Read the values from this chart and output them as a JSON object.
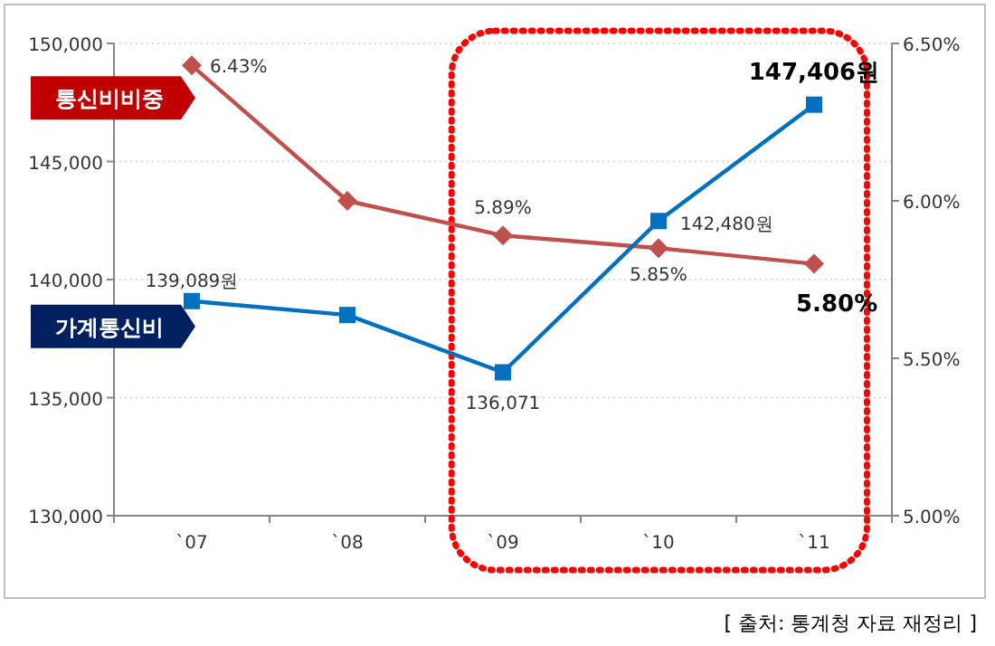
{
  "chart_data": {
    "type": "line",
    "categories": [
      "`07",
      "`08",
      "`09",
      "`10",
      "`11"
    ],
    "series": [
      {
        "name": "통신비비중",
        "color": "#c0504d",
        "axis": "y2",
        "marker": "diamond",
        "values": [
          6.43,
          6.0,
          5.89,
          5.85,
          5.8
        ],
        "value_labels": [
          "6.43%",
          null,
          "5.89%",
          "5.85%",
          "5.80%"
        ]
      },
      {
        "name": "가계통신비",
        "color": "#0070c0",
        "axis": "y",
        "marker": "square",
        "values": [
          139089,
          138500,
          136071,
          142480,
          147406
        ],
        "value_labels": [
          "139,089원",
          null,
          "136,071",
          "142,480원",
          "147,406원"
        ]
      }
    ],
    "ylim": [
      130000,
      150000
    ],
    "yticks": [
      {
        "value": 130000,
        "label": "130,000"
      },
      {
        "value": 135000,
        "label": "135,000"
      },
      {
        "value": 140000,
        "label": "140,000"
      },
      {
        "value": 145000,
        "label": "145,000"
      },
      {
        "value": 150000,
        "label": "150,000"
      }
    ],
    "y2lim": [
      5.0,
      6.5
    ],
    "y2ticks": [
      {
        "value": 5.0,
        "label": "5.00%"
      },
      {
        "value": 5.5,
        "label": "5.50%"
      },
      {
        "value": 6.0,
        "label": "6.00%"
      },
      {
        "value": 6.5,
        "label": "6.50%"
      }
    ],
    "grid": "y",
    "annotations": [
      "[ 출처: 통계청 자료 재정리 ]"
    ]
  }
}
